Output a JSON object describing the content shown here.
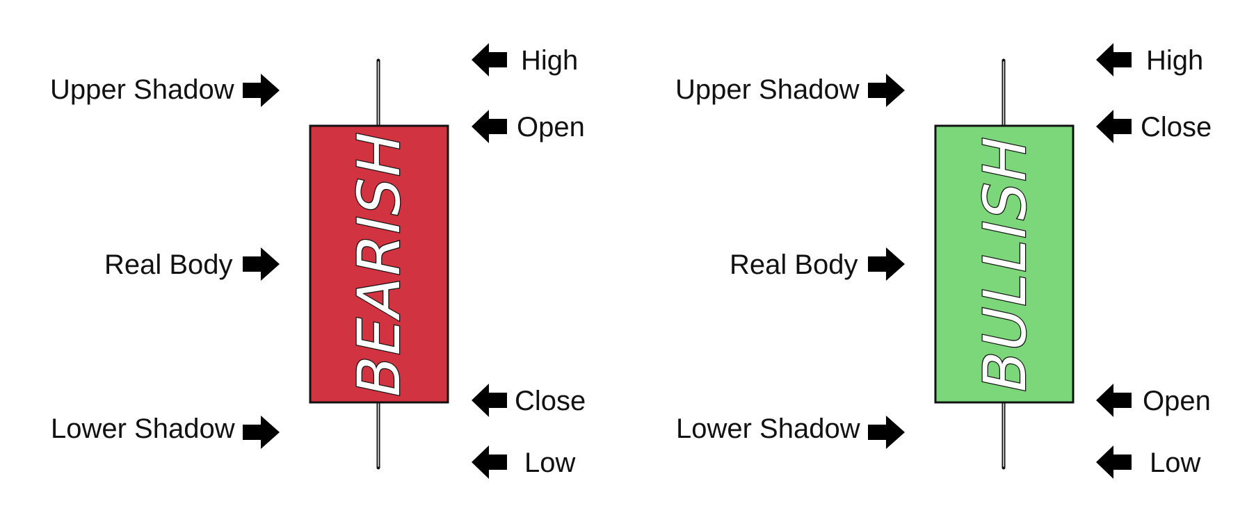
{
  "bearish": {
    "body_text": "BEARISH",
    "body_color": "#d13440",
    "labels": {
      "upper_shadow": "Upper Shadow",
      "real_body": "Real Body",
      "lower_shadow": "Lower Shadow",
      "high": "High",
      "open": "Open",
      "close": "Close",
      "low": "Low"
    }
  },
  "bullish": {
    "body_text": "BULLISH",
    "body_color": "#7cd67a",
    "labels": {
      "upper_shadow": "Upper Shadow",
      "real_body": "Real Body",
      "lower_shadow": "Lower Shadow",
      "high": "High",
      "close": "Close",
      "open": "Open",
      "low": "Low"
    }
  },
  "icons": [
    "arrow-right-icon",
    "arrow-left-icon"
  ]
}
